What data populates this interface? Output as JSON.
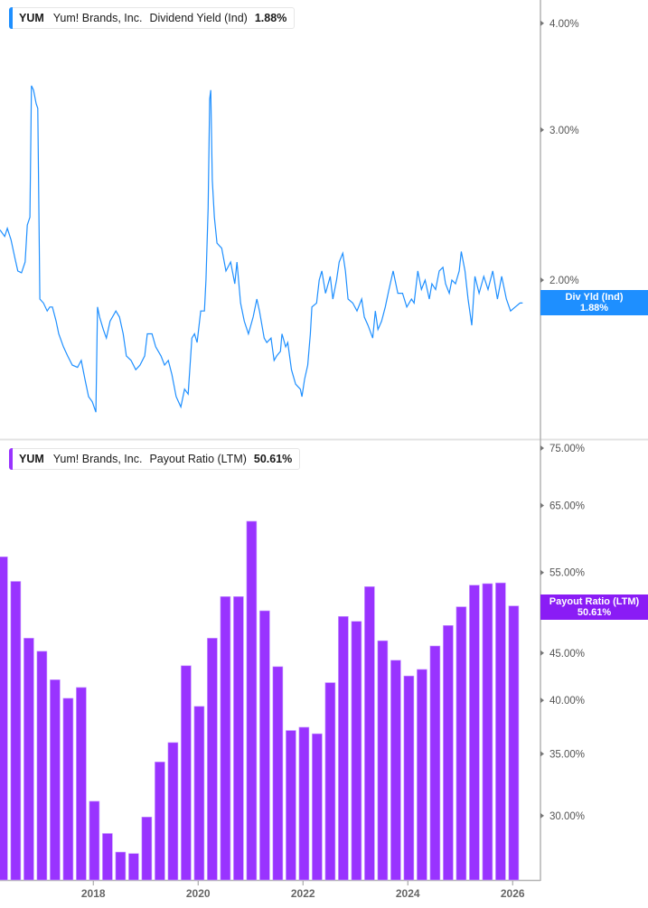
{
  "colors": {
    "dividend_yield": "#1e8fff",
    "payout_ratio": "#9933ff",
    "axis": "#b3b3b3"
  },
  "top_legend": {
    "ticker": "YUM",
    "company": "Yum! Brands, Inc.",
    "metric": "Dividend Yield (Ind)",
    "value": "1.88%"
  },
  "top_badge": {
    "label": "Div Yld (Ind)",
    "value": "1.88%"
  },
  "bottom_legend": {
    "ticker": "YUM",
    "company": "Yum! Brands, Inc.",
    "metric": "Payout Ratio (LTM)",
    "value": "50.61%"
  },
  "bottom_badge": {
    "label": "Payout Ratio (LTM)",
    "value": "50.61%"
  },
  "chart_data": [
    {
      "type": "line",
      "series_label": "Dividend Yield (Ind)",
      "y_scale": "log",
      "y_ticks": [
        {
          "v": 4,
          "label": "4.00%"
        },
        {
          "v": 3,
          "label": "3.00%"
        },
        {
          "v": 2,
          "label": "2.00%"
        }
      ],
      "grid": false,
      "legend": "top-left",
      "points": [
        [
          2016.22,
          2.29
        ],
        [
          2016.31,
          2.25
        ],
        [
          2016.36,
          2.3
        ],
        [
          2016.43,
          2.23
        ],
        [
          2016.5,
          2.13
        ],
        [
          2016.56,
          2.05
        ],
        [
          2016.63,
          2.04
        ],
        [
          2016.7,
          2.1
        ],
        [
          2016.74,
          2.32
        ],
        [
          2016.79,
          2.37
        ],
        [
          2016.82,
          3.38
        ],
        [
          2016.86,
          3.34
        ],
        [
          2016.91,
          3.22
        ],
        [
          2016.94,
          3.18
        ],
        [
          2016.98,
          1.9
        ],
        [
          2017.05,
          1.88
        ],
        [
          2017.12,
          1.84
        ],
        [
          2017.17,
          1.86
        ],
        [
          2017.22,
          1.86
        ],
        [
          2017.29,
          1.79
        ],
        [
          2017.34,
          1.73
        ],
        [
          2017.43,
          1.67
        ],
        [
          2017.51,
          1.63
        ],
        [
          2017.6,
          1.59
        ],
        [
          2017.7,
          1.58
        ],
        [
          2017.77,
          1.61
        ],
        [
          2017.84,
          1.53
        ],
        [
          2017.91,
          1.46
        ],
        [
          2017.98,
          1.44
        ],
        [
          2018.05,
          1.4
        ],
        [
          2018.08,
          1.86
        ],
        [
          2018.12,
          1.81
        ],
        [
          2018.19,
          1.75
        ],
        [
          2018.25,
          1.71
        ],
        [
          2018.32,
          1.79
        ],
        [
          2018.43,
          1.84
        ],
        [
          2018.5,
          1.81
        ],
        [
          2018.57,
          1.73
        ],
        [
          2018.63,
          1.63
        ],
        [
          2018.72,
          1.61
        ],
        [
          2018.81,
          1.57
        ],
        [
          2018.89,
          1.59
        ],
        [
          2018.98,
          1.63
        ],
        [
          2019.03,
          1.73
        ],
        [
          2019.12,
          1.73
        ],
        [
          2019.19,
          1.67
        ],
        [
          2019.29,
          1.63
        ],
        [
          2019.36,
          1.59
        ],
        [
          2019.43,
          1.61
        ],
        [
          2019.5,
          1.55
        ],
        [
          2019.58,
          1.46
        ],
        [
          2019.67,
          1.42
        ],
        [
          2019.74,
          1.49
        ],
        [
          2019.81,
          1.47
        ],
        [
          2019.88,
          1.71
        ],
        [
          2019.93,
          1.73
        ],
        [
          2019.98,
          1.69
        ],
        [
          2020.05,
          1.84
        ],
        [
          2020.12,
          1.84
        ],
        [
          2020.15,
          2.0
        ],
        [
          2020.19,
          2.43
        ],
        [
          2020.22,
          3.26
        ],
        [
          2020.24,
          3.34
        ],
        [
          2020.27,
          2.62
        ],
        [
          2020.31,
          2.37
        ],
        [
          2020.36,
          2.21
        ],
        [
          2020.45,
          2.18
        ],
        [
          2020.53,
          2.05
        ],
        [
          2020.62,
          2.1
        ],
        [
          2020.7,
          1.98
        ],
        [
          2020.74,
          2.1
        ],
        [
          2020.81,
          1.88
        ],
        [
          2020.88,
          1.79
        ],
        [
          2020.96,
          1.73
        ],
        [
          2021.05,
          1.81
        ],
        [
          2021.12,
          1.9
        ],
        [
          2021.17,
          1.84
        ],
        [
          2021.26,
          1.71
        ],
        [
          2021.31,
          1.69
        ],
        [
          2021.39,
          1.71
        ],
        [
          2021.45,
          1.61
        ],
        [
          2021.5,
          1.63
        ],
        [
          2021.57,
          1.65
        ],
        [
          2021.6,
          1.73
        ],
        [
          2021.67,
          1.67
        ],
        [
          2021.71,
          1.69
        ],
        [
          2021.78,
          1.57
        ],
        [
          2021.86,
          1.51
        ],
        [
          2021.95,
          1.49
        ],
        [
          2021.98,
          1.46
        ],
        [
          2022.03,
          1.53
        ],
        [
          2022.09,
          1.59
        ],
        [
          2022.14,
          1.73
        ],
        [
          2022.17,
          1.86
        ],
        [
          2022.26,
          1.88
        ],
        [
          2022.31,
          2.0
        ],
        [
          2022.36,
          2.05
        ],
        [
          2022.43,
          1.93
        ],
        [
          2022.52,
          2.02
        ],
        [
          2022.57,
          1.9
        ],
        [
          2022.64,
          2.0
        ],
        [
          2022.69,
          2.1
        ],
        [
          2022.76,
          2.15
        ],
        [
          2022.81,
          2.05
        ],
        [
          2022.86,
          1.9
        ],
        [
          2022.95,
          1.88
        ],
        [
          2023.03,
          1.84
        ],
        [
          2023.12,
          1.9
        ],
        [
          2023.17,
          1.81
        ],
        [
          2023.24,
          1.77
        ],
        [
          2023.33,
          1.71
        ],
        [
          2023.38,
          1.84
        ],
        [
          2023.43,
          1.75
        ],
        [
          2023.5,
          1.79
        ],
        [
          2023.57,
          1.86
        ],
        [
          2023.64,
          1.95
        ],
        [
          2023.72,
          2.05
        ],
        [
          2023.81,
          1.93
        ],
        [
          2023.9,
          1.93
        ],
        [
          2023.98,
          1.86
        ],
        [
          2024.07,
          1.9
        ],
        [
          2024.12,
          1.88
        ],
        [
          2024.19,
          2.05
        ],
        [
          2024.26,
          1.95
        ],
        [
          2024.33,
          2.0
        ],
        [
          2024.41,
          1.9
        ],
        [
          2024.46,
          1.98
        ],
        [
          2024.53,
          1.95
        ],
        [
          2024.6,
          2.05
        ],
        [
          2024.67,
          2.07
        ],
        [
          2024.72,
          1.98
        ],
        [
          2024.79,
          1.93
        ],
        [
          2024.84,
          2.0
        ],
        [
          2024.91,
          1.98
        ],
        [
          2024.98,
          2.05
        ],
        [
          2025.02,
          2.16
        ],
        [
          2025.09,
          2.05
        ],
        [
          2025.15,
          1.9
        ],
        [
          2025.22,
          1.77
        ],
        [
          2025.28,
          2.02
        ],
        [
          2025.36,
          1.93
        ],
        [
          2025.45,
          2.02
        ],
        [
          2025.53,
          1.95
        ],
        [
          2025.62,
          2.05
        ],
        [
          2025.71,
          1.9
        ],
        [
          2025.79,
          2.02
        ],
        [
          2025.88,
          1.9
        ],
        [
          2025.96,
          1.84
        ],
        [
          2026.05,
          1.86
        ],
        [
          2026.14,
          1.88
        ],
        [
          2026.19,
          1.88
        ]
      ]
    },
    {
      "type": "bar",
      "series_label": "Payout Ratio (LTM)",
      "y_scale": "log",
      "y_ticks": [
        {
          "v": 75,
          "label": "75.00%"
        },
        {
          "v": 65,
          "label": "65.00%"
        },
        {
          "v": 55,
          "label": "55.00%"
        },
        {
          "v": 50,
          "label": "50.00%"
        },
        {
          "v": 45,
          "label": "45.00%"
        },
        {
          "v": 40,
          "label": "40.00%"
        },
        {
          "v": 35,
          "label": "35.00%"
        },
        {
          "v": 30,
          "label": "30.00%"
        }
      ],
      "x_ticks": [
        {
          "v": 2018,
          "label": "2018"
        },
        {
          "v": 2020,
          "label": "2020"
        },
        {
          "v": 2022,
          "label": "2022"
        },
        {
          "v": 2024,
          "label": "2024"
        },
        {
          "v": 2026,
          "label": "2026"
        }
      ],
      "grid": false,
      "legend": "top-left",
      "x": [
        2016.27,
        2016.52,
        2016.77,
        2017.02,
        2017.27,
        2017.52,
        2017.77,
        2018.02,
        2018.27,
        2018.52,
        2018.77,
        2019.02,
        2019.27,
        2019.52,
        2019.77,
        2020.02,
        2020.27,
        2020.52,
        2020.77,
        2021.02,
        2021.27,
        2021.52,
        2021.77,
        2022.02,
        2022.27,
        2022.52,
        2022.77,
        2023.02,
        2023.27,
        2023.52,
        2023.77,
        2024.02,
        2024.27,
        2024.52,
        2024.77,
        2025.02,
        2025.27,
        2025.52,
        2025.77,
        2026.02
      ],
      "values": [
        57.2,
        53.8,
        46.7,
        45.2,
        42.1,
        40.2,
        41.3,
        31.1,
        28.7,
        27.4,
        27.3,
        29.9,
        34.3,
        36.0,
        43.6,
        39.4,
        46.7,
        51.8,
        51.8,
        62.5,
        50.0,
        43.5,
        37.1,
        37.4,
        36.8,
        41.8,
        49.3,
        48.7,
        53.1,
        46.4,
        44.2,
        42.5,
        43.2,
        45.8,
        48.2,
        50.5,
        53.3,
        53.5,
        53.6,
        50.61
      ]
    }
  ]
}
